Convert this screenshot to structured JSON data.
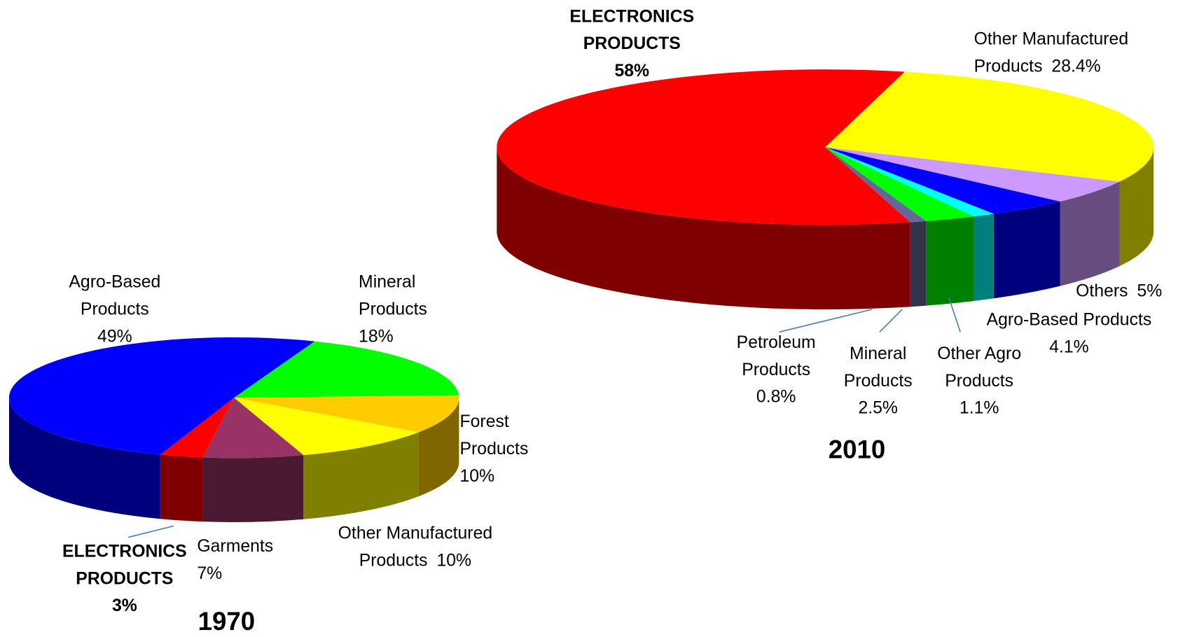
{
  "chart_data": [
    {
      "type": "pie",
      "title": "1970",
      "categories": [
        "Mineral Products",
        "Forest Products",
        "Other Manufactured Products",
        "Garments",
        "ELECTRONICS PRODUCTS",
        "Agro-Based Products"
      ],
      "values": [
        18,
        10,
        10,
        7,
        3,
        49
      ],
      "value_labels": [
        "18%",
        "10%",
        "10%",
        "7%",
        "3%",
        "49%"
      ],
      "colors": [
        "#00ff00",
        "#ffcc00",
        "#ffff00",
        "#993366",
        "#ff0000",
        "#0000ff"
      ]
    },
    {
      "type": "pie",
      "title": "2010",
      "categories": [
        "Other Manufactured Products",
        "Others",
        "Agro-Based Products",
        "Other Agro Products",
        "Mineral Products",
        "Petroleum Products",
        "ELECTRONICS PRODUCTS"
      ],
      "values": [
        28.4,
        5,
        4.1,
        1.1,
        2.5,
        0.8,
        58
      ],
      "value_labels": [
        "28.4%",
        "5%",
        "4.1%",
        "1.1%",
        "2.5%",
        "0.8%",
        "58%"
      ],
      "colors": [
        "#ffff00",
        "#cc99ff",
        "#0000ff",
        "#00ffff",
        "#00ff00",
        "#666699",
        "#ff0000"
      ]
    }
  ]
}
